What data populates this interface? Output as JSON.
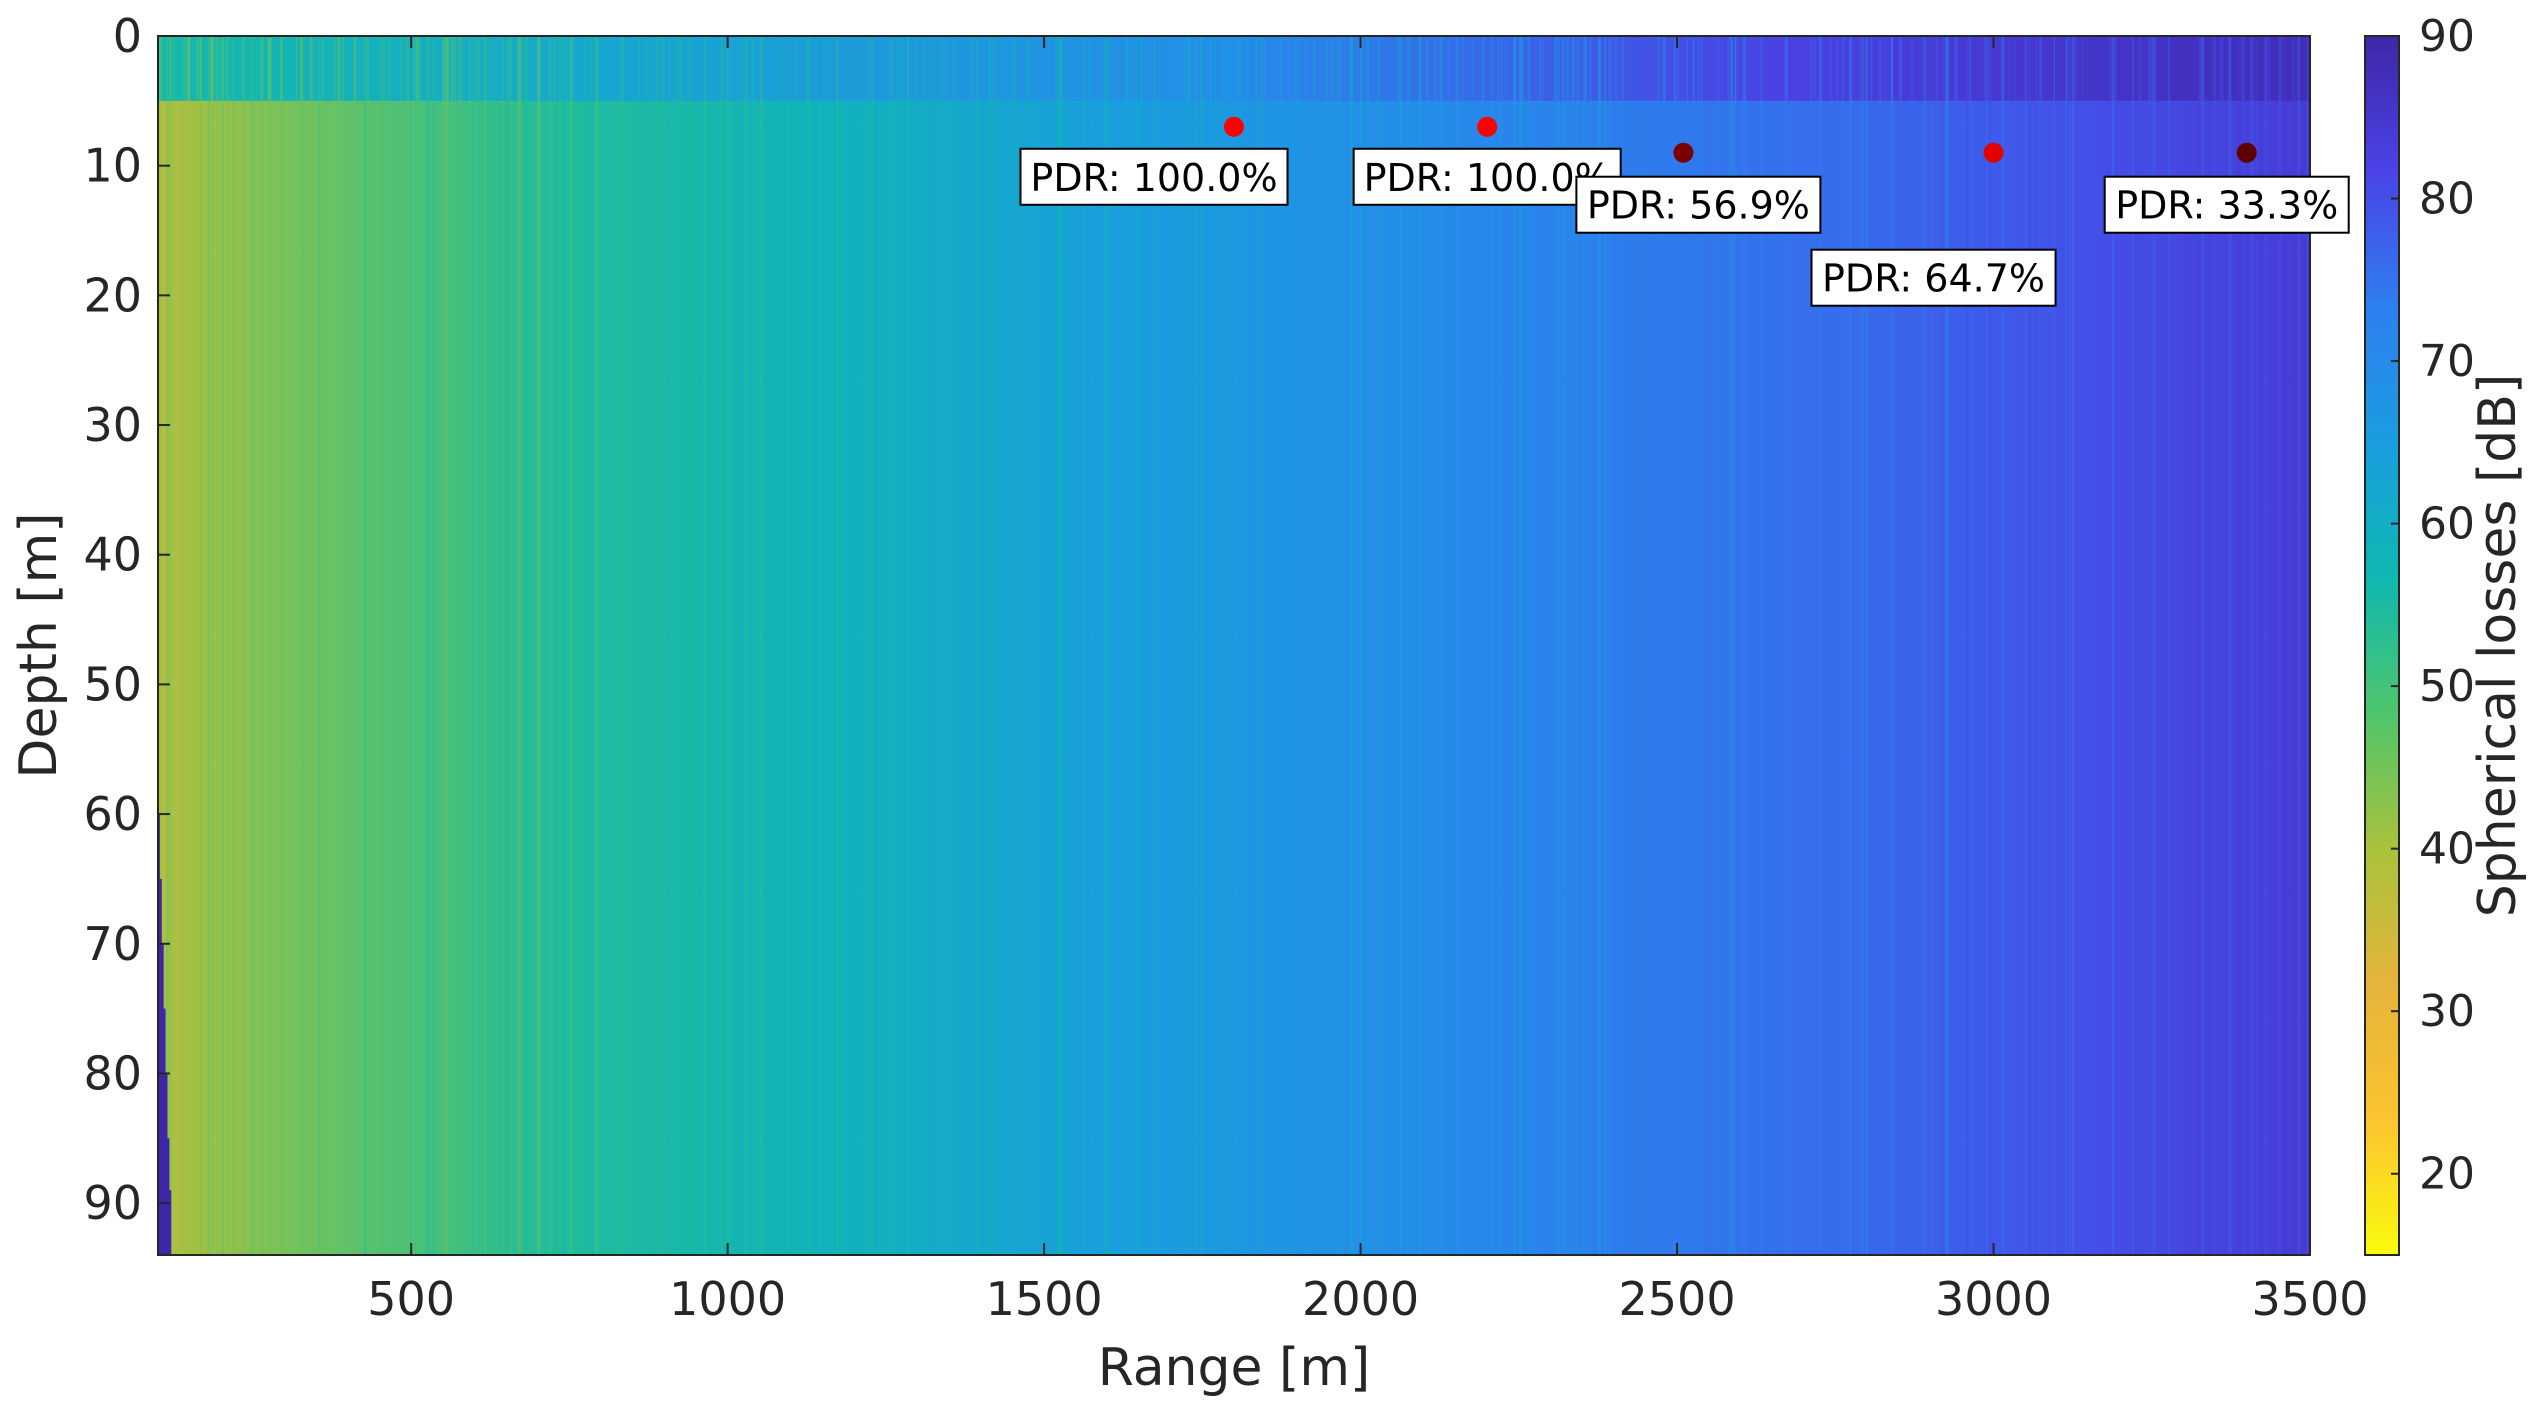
{
  "chart_data": {
    "type": "heatmap",
    "title": "",
    "xlabel": "Range [m]",
    "ylabel": "Depth [m]",
    "colorbar_label": "Spherical losses [dB]",
    "xlim": [
      100,
      3500
    ],
    "ylim": [
      0,
      94
    ],
    "y_reversed": true,
    "x_ticks": [
      500,
      1000,
      1500,
      2000,
      2500,
      3000,
      3500
    ],
    "y_ticks": [
      0,
      10,
      20,
      30,
      40,
      50,
      60,
      70,
      80,
      90
    ],
    "colorbar_range": [
      15,
      90
    ],
    "colorbar_ticks": [
      20,
      30,
      40,
      50,
      60,
      70,
      80,
      90
    ],
    "colormap": "parula-reversed",
    "colormap_stops": [
      "#3e26a8",
      "#4a43e6",
      "#2e7ff0",
      "#1a9de0",
      "#0fb8b0",
      "#4fc56c",
      "#a9c23c",
      "#e5b43a",
      "#fbc42f",
      "#f9fb0e"
    ],
    "field_description_values": {
      "near_range_db": 45,
      "mid_range_db": 65,
      "far_range_db": 82
    },
    "bottom_mask_color": "#3e26a8",
    "markers": [
      {
        "x": 1800,
        "y": 7,
        "color": "#ff0000",
        "label": "PDR: 100.0%"
      },
      {
        "x": 2200,
        "y": 7,
        "color": "#ff0000",
        "label": "PDR: 100.0%"
      },
      {
        "x": 2510,
        "y": 9,
        "color": "#7a0000",
        "label": "PDR: 56.9%"
      },
      {
        "x": 3000,
        "y": 9,
        "color": "#e30000",
        "label": "PDR: 64.7%"
      },
      {
        "x": 3400,
        "y": 9,
        "color": "#5e0000",
        "label": "PDR: 33.3%"
      }
    ],
    "grid": false,
    "legend": "none"
  }
}
